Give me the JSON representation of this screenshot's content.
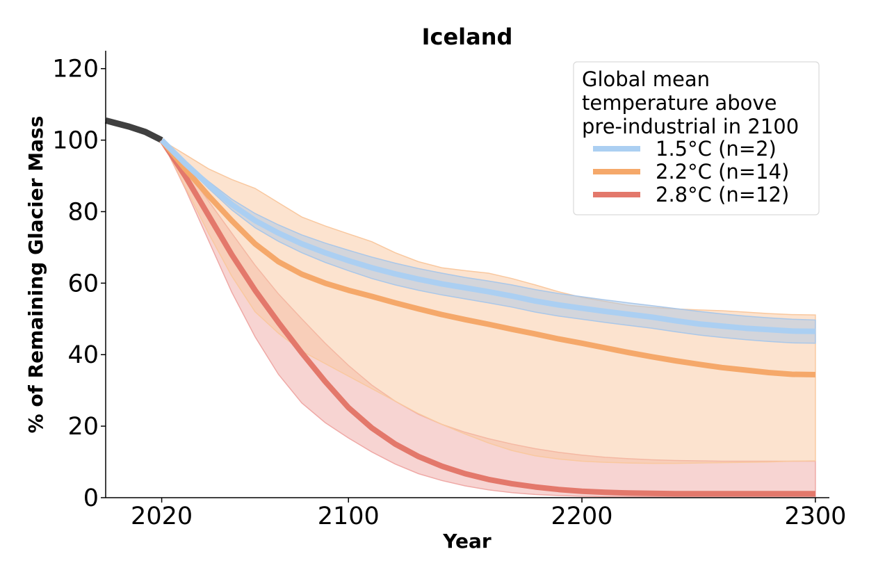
{
  "chart_data": {
    "type": "line",
    "title": "Iceland",
    "xlabel": "Year",
    "ylabel": "% of Remaining Glacier Mass",
    "xlim": [
      1996,
      2306
    ],
    "ylim": [
      0,
      125
    ],
    "xticks": [
      "2020",
      "2100",
      "2200",
      "2300"
    ],
    "yticks": [
      "0",
      "20",
      "40",
      "60",
      "80",
      "100",
      "120"
    ],
    "legend": {
      "title_lines": [
        "Global mean",
        "temperature above",
        "pre-industrial in 2100"
      ],
      "position": "top-right"
    },
    "historical": {
      "color": "#000000",
      "x": [
        1996,
        2000,
        2006,
        2013,
        2020
      ],
      "y": [
        105.5,
        104.8,
        103.8,
        102.3,
        100.0
      ]
    },
    "series": [
      {
        "name": "1.5°C (n=2)",
        "color": "#abcff2",
        "band_color": "#aac7e8",
        "x": [
          2020,
          2030,
          2040,
          2050,
          2060,
          2070,
          2080,
          2090,
          2100,
          2110,
          2120,
          2130,
          2140,
          2150,
          2160,
          2170,
          2180,
          2190,
          2200,
          2210,
          2220,
          2230,
          2240,
          2250,
          2260,
          2270,
          2280,
          2290,
          2300
        ],
        "y": [
          100,
          93.5,
          87.5,
          82,
          77.5,
          74,
          71,
          68.5,
          66.3,
          64.3,
          62.6,
          61.1,
          59.8,
          58.7,
          57.6,
          56.4,
          55,
          53.9,
          53,
          52.1,
          51.3,
          50.5,
          49.5,
          48.6,
          48,
          47.4,
          47,
          46.6,
          46.5
        ],
        "upper": [
          100,
          94,
          88.5,
          83.5,
          79.5,
          76.3,
          73.5,
          71.2,
          69.2,
          67.3,
          65.6,
          64.1,
          62.8,
          61.6,
          60.6,
          59.5,
          58.2,
          57.1,
          56.2,
          55.3,
          54.5,
          53.7,
          52.9,
          52.1,
          51.4,
          50.8,
          50.3,
          49.9,
          49.7
        ],
        "lower": [
          100,
          93,
          86.5,
          80.5,
          75.5,
          71.7,
          68.5,
          65.8,
          63.5,
          61.3,
          59.5,
          58,
          56.7,
          55.6,
          54.5,
          53.3,
          51.9,
          50.8,
          49.9,
          49,
          48.2,
          47.4,
          46.4,
          45.5,
          44.8,
          44.2,
          43.7,
          43.3,
          43.2
        ]
      },
      {
        "name": "2.2°C (n=14)",
        "color": "#f5a86a",
        "band_color": "#f9c89f",
        "x": [
          2020,
          2030,
          2040,
          2050,
          2060,
          2070,
          2080,
          2090,
          2100,
          2110,
          2120,
          2130,
          2140,
          2150,
          2160,
          2170,
          2180,
          2190,
          2200,
          2210,
          2220,
          2230,
          2240,
          2250,
          2260,
          2270,
          2280,
          2290,
          2300
        ],
        "y": [
          100,
          92,
          84.5,
          77.5,
          71,
          66,
          62.5,
          60,
          58,
          56.3,
          54.5,
          52.8,
          51.2,
          49.8,
          48.5,
          47.1,
          45.8,
          44.4,
          43.2,
          41.9,
          40.6,
          39.4,
          38.3,
          37.3,
          36.4,
          35.7,
          35,
          34.5,
          34.4
        ],
        "upper": [
          100,
          96,
          92,
          89,
          86.5,
          82.5,
          78.5,
          76,
          73.8,
          71.6,
          68.5,
          66,
          64.3,
          63.5,
          62.8,
          61.3,
          59.5,
          57.6,
          56,
          54.9,
          53.8,
          53.2,
          52.8,
          52.5,
          52.3,
          51.9,
          51.5,
          51.2,
          51.1
        ],
        "lower": [
          100,
          87,
          74,
          62,
          52,
          46,
          41,
          37.5,
          34,
          30.5,
          27,
          23.5,
          20.5,
          17.8,
          15.3,
          13.2,
          11.7,
          10.8,
          10.2,
          9.9,
          9.7,
          9.6,
          9.6,
          9.7,
          9.8,
          9.9,
          10,
          10.2,
          10.3
        ]
      },
      {
        "name": "2.8°C (n=12)",
        "color": "#e3786b",
        "band_color": "#efa9a6",
        "x": [
          2020,
          2030,
          2040,
          2050,
          2060,
          2070,
          2080,
          2090,
          2100,
          2110,
          2120,
          2130,
          2140,
          2150,
          2160,
          2170,
          2180,
          2190,
          2200,
          2210,
          2220,
          2230,
          2240,
          2250,
          2260,
          2270,
          2280,
          2290,
          2300
        ],
        "y": [
          100,
          90,
          79,
          68,
          58,
          49,
          40.5,
          32.5,
          25.2,
          19.5,
          15,
          11.5,
          8.8,
          6.7,
          5.1,
          3.9,
          3,
          2.3,
          1.8,
          1.5,
          1.3,
          1.2,
          1.1,
          1.1,
          1.1,
          1.1,
          1.1,
          1.1,
          1.1
        ],
        "upper": [
          100,
          92,
          83,
          74,
          65,
          57,
          50,
          43.2,
          37,
          31.5,
          27,
          23.3,
          20.5,
          18.3,
          16.5,
          15,
          13.7,
          12.7,
          11.9,
          11.3,
          10.9,
          10.6,
          10.4,
          10.3,
          10.2,
          10.2,
          10.2,
          10.2,
          10.2
        ],
        "lower": [
          100,
          86.5,
          72,
          57.5,
          45,
          34.5,
          26.5,
          21,
          16.7,
          12.8,
          9.4,
          6.7,
          4.8,
          3.3,
          2.2,
          1.4,
          0.9,
          0.6,
          0.4,
          0.3,
          0.3,
          0.3,
          0.3,
          0.3,
          0.3,
          0.3,
          0.3,
          0.3,
          0.3
        ]
      }
    ]
  }
}
